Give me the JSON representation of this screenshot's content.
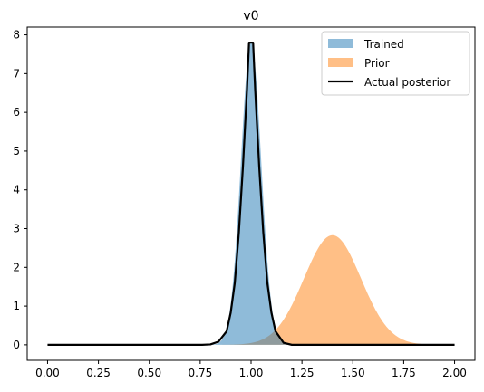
{
  "chart_data": {
    "type": "area",
    "title": "v0",
    "xlabel": "",
    "ylabel": "",
    "xlim": [
      -0.1,
      2.1
    ],
    "ylim": [
      -0.4,
      8.2
    ],
    "x_ticks": [
      0.0,
      0.25,
      0.5,
      0.75,
      1.0,
      1.25,
      1.5,
      1.75,
      2.0
    ],
    "x_tick_labels": [
      "0.00",
      "0.25",
      "0.50",
      "0.75",
      "1.00",
      "1.25",
      "1.50",
      "1.75",
      "2.00"
    ],
    "y_ticks": [
      0,
      1,
      2,
      3,
      4,
      5,
      6,
      7,
      8
    ],
    "y_tick_labels": [
      "0",
      "1",
      "2",
      "3",
      "4",
      "5",
      "6",
      "7",
      "8"
    ],
    "grid": false,
    "legend_position": "top-right",
    "series": [
      {
        "name": "Trained",
        "kind": "filled-area",
        "color": "#1f77b4",
        "opacity": 0.5,
        "peak_x": 1.0,
        "peak_y": 7.8,
        "spread": 0.05
      },
      {
        "name": "Prior",
        "kind": "filled-area",
        "color": "#ff7f0e",
        "opacity": 0.5,
        "peak_x": 1.4,
        "peak_y": 2.83,
        "spread": 0.14
      },
      {
        "name": "Actual posterior",
        "kind": "line",
        "color": "#000000",
        "x": [
          0.0,
          0.76,
          0.8,
          0.84,
          0.88,
          0.9,
          0.92,
          0.94,
          0.96,
          0.98,
          0.99,
          1.01,
          1.02,
          1.04,
          1.06,
          1.08,
          1.1,
          1.12,
          1.16,
          1.2,
          2.0
        ],
        "y": [
          0.0,
          0.0,
          0.01,
          0.08,
          0.35,
          0.83,
          1.6,
          2.9,
          4.6,
          6.6,
          7.8,
          7.8,
          6.6,
          4.6,
          2.9,
          1.6,
          0.83,
          0.35,
          0.05,
          0.0,
          0.0
        ]
      }
    ]
  }
}
